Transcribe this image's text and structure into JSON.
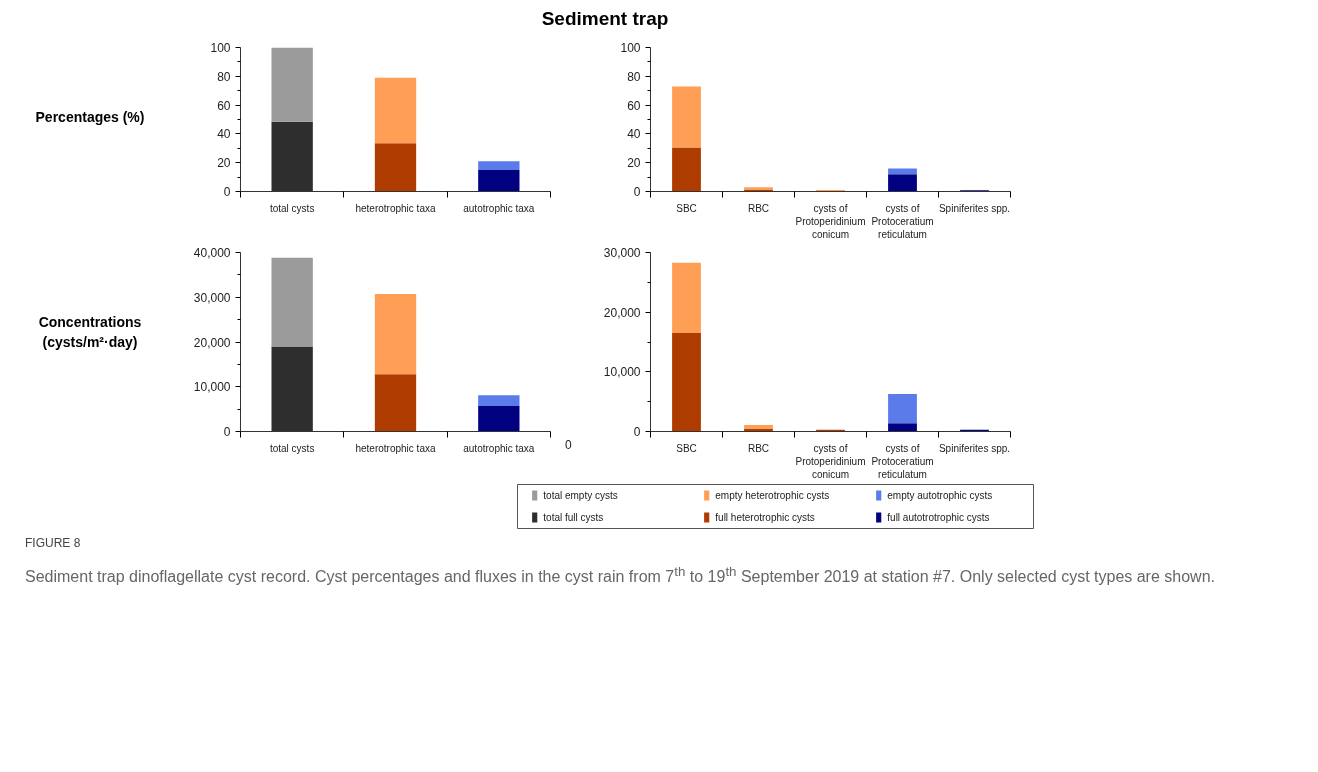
{
  "chart_data": [
    {
      "type": "bar",
      "title": "Sediment trap",
      "ylabel": "Percentages (%)",
      "stacked": true,
      "legend": "bottom",
      "categories": [
        "total cysts",
        "heterotrophic taxa",
        "autotrophic taxa"
      ],
      "ylim": [
        0,
        100
      ],
      "yticks": [
        0,
        20,
        40,
        60,
        80,
        100
      ],
      "annotations": [
        "FIGURE 8",
        "Sediment trap dinoflagellate cyst record. Cyst percentages and fluxes in the cyst rain from 7$^{th}$ to 19$^{th}$ September 2019 at station #7. Only selected cyst types are shown."
      ],
      "series": [
        {
          "name": "total full cysts",
          "color": "#2e2e2e",
          "values": [
            48.5,
            null,
            null
          ]
        },
        {
          "name": "total empty cysts",
          "color": "#9b9b9b",
          "values": [
            51.5,
            null,
            null
          ]
        },
        {
          "name": "full heterotrophic cysts",
          "color": "#ae3c00",
          "values": [
            null,
            33.5,
            null
          ]
        },
        {
          "name": "empty heterotrophic cysts",
          "color": "#ff9e55",
          "values": [
            null,
            45.5,
            null
          ]
        },
        {
          "name": "full autotrotrophic cysts",
          "color": "#000080",
          "values": [
            null,
            null,
            15
          ]
        },
        {
          "name": "empty autotrophic cysts",
          "color": "#5b7bea",
          "values": [
            null,
            null,
            6
          ]
        }
      ]
    },
    {
      "type": "bar",
      "stacked": true,
      "categories": [
        "SBC",
        "RBC",
        "cysts of\nProtoperidinium\nconicum",
        "cysts of\nProtoceratium\nreticulatum",
        "Spiniferites spp."
      ],
      "ylim": [
        0,
        100
      ],
      "yticks": [
        0,
        20,
        40,
        60,
        80,
        100
      ],
      "series": [
        {
          "color": "#ae3c00",
          "values": [
            30.5,
            1,
            null,
            null,
            null
          ]
        },
        {
          "color": "#ff9e55",
          "values": [
            42.5,
            2,
            1,
            null,
            null
          ]
        },
        {
          "color": "#000080",
          "values": [
            null,
            null,
            null,
            12,
            0.8
          ]
        },
        {
          "color": "#5b7bea",
          "values": [
            null,
            null,
            null,
            4,
            null
          ]
        }
      ]
    },
    {
      "type": "bar",
      "stacked": true,
      "ylabel": "Concentrations\n(cysts/m²·day)",
      "categories": [
        "total cysts",
        "heterotrophic taxa",
        "autotrophic taxa"
      ],
      "ylim": [
        0,
        40000
      ],
      "yticks": [
        0,
        {
          "value": 10000,
          "label": "10,000"
        },
        {
          "value": 20000,
          "label": "20,000"
        },
        {
          "value": 30000,
          "label": "30,000"
        },
        {
          "value": 40000,
          "label": "40,000"
        }
      ],
      "series": [
        {
          "color": "#2e2e2e",
          "values": [
            19000,
            null,
            null
          ]
        },
        {
          "color": "#9b9b9b",
          "values": [
            19800,
            null,
            null
          ]
        },
        {
          "color": "#ae3c00",
          "values": [
            null,
            12800,
            null
          ]
        },
        {
          "color": "#ff9e55",
          "values": [
            null,
            17900,
            null
          ]
        },
        {
          "color": "#000080",
          "values": [
            null,
            null,
            5700
          ]
        },
        {
          "color": "#5b7bea",
          "values": [
            null,
            null,
            2400
          ]
        }
      ]
    },
    {
      "type": "bar",
      "stacked": true,
      "categories": [
        "SBC",
        "RBC",
        "cysts of\nProtoperidinium\nconicum",
        "cysts of\nProtoceratium\nreticulatum",
        "Spiniferites spp."
      ],
      "ylim": [
        0,
        30000
      ],
      "yticks": [
        0,
        {
          "value": 10000,
          "label": "10,000"
        },
        {
          "value": 20000,
          "label": "20,000"
        },
        {
          "value": 30000,
          "label": "30,000"
        }
      ],
      "annotations": [
        "0"
      ],
      "series": [
        {
          "color": "#ae3c00",
          "values": [
            16500,
            400,
            300,
            null,
            null
          ]
        },
        {
          "color": "#ff9e55",
          "values": [
            11800,
            700,
            null,
            null,
            null
          ]
        },
        {
          "color": "#000080",
          "values": [
            null,
            null,
            null,
            1400,
            300
          ]
        },
        {
          "color": "#5b7bea",
          "values": [
            null,
            null,
            null,
            4900,
            null
          ]
        }
      ]
    }
  ]
}
